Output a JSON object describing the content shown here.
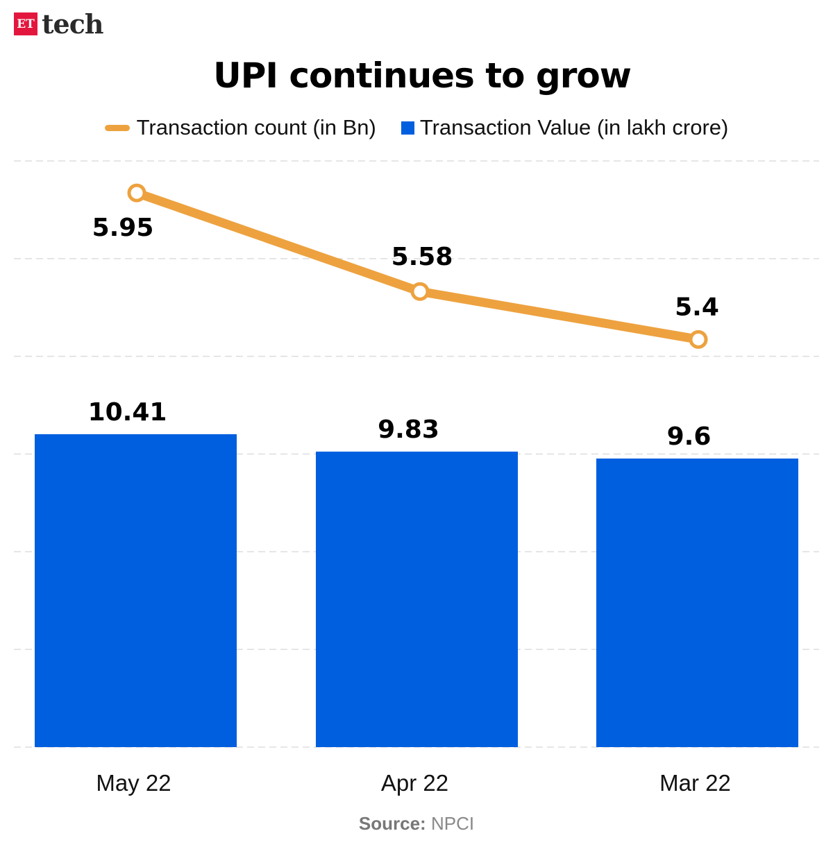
{
  "brand": {
    "logo_text": "ET tech"
  },
  "chart_data": {
    "type": "bar+line",
    "title": "UPI continues to grow",
    "categories": [
      "May 22",
      "Apr 22",
      "Mar 22"
    ],
    "series": [
      {
        "name": "Transaction count (in Bn)",
        "kind": "line",
        "values": [
          5.95,
          5.58,
          5.4
        ],
        "color": "#eda23f",
        "ylim": [
          3.87,
          6.07
        ]
      },
      {
        "name": "Transaction Value (in lakh crore)",
        "kind": "bar",
        "values": [
          10.41,
          9.83,
          9.6
        ],
        "color": "#005fdf",
        "ylim": [
          0,
          19.5
        ]
      }
    ],
    "data_labels": {
      "line": [
        "5.95",
        "5.58",
        "5.4"
      ],
      "bar": [
        "10.41",
        "9.83",
        "9.6"
      ]
    },
    "grid": true,
    "legend_placement": "top"
  },
  "source": {
    "label": "Source:",
    "value": "NPCI"
  }
}
